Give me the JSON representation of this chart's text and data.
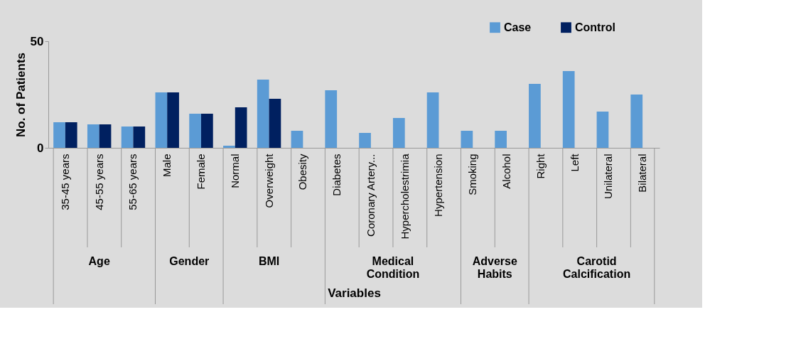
{
  "chart_data": {
    "type": "bar",
    "xlabel": "Variables",
    "ylabel": "No. of Patients",
    "categories": [
      "35-45 years",
      "45-55 years",
      "55-65 years",
      "Male",
      "Female",
      "Normal",
      "Overweight",
      "Obesity",
      "Diabetes",
      "Coronary Artery...",
      "Hypercholestrimia",
      "Hypertension",
      "Smoking",
      "Alcohol",
      "Right",
      "Left",
      "Unilateral",
      "Bilateral"
    ],
    "series": [
      {
        "name": "Case",
        "color": "#5b9bd5",
        "values": [
          12,
          11,
          10,
          26,
          16,
          1,
          32,
          8,
          27,
          7,
          14,
          26,
          8,
          8,
          30,
          36,
          17,
          25
        ]
      },
      {
        "name": "Control",
        "color": "#002060",
        "values": [
          12,
          11,
          10,
          26,
          16,
          19,
          23,
          0,
          0,
          0,
          0,
          0,
          0,
          0,
          0,
          0,
          0,
          0
        ]
      }
    ],
    "annotations": [
      "Age",
      "Gender",
      "BMI",
      "Medical Condition",
      "Adverse Habits",
      "Carotid Calcification"
    ],
    "ylim": [
      0,
      50
    ],
    "yticks": [
      0,
      50
    ],
    "legend": "top right"
  }
}
